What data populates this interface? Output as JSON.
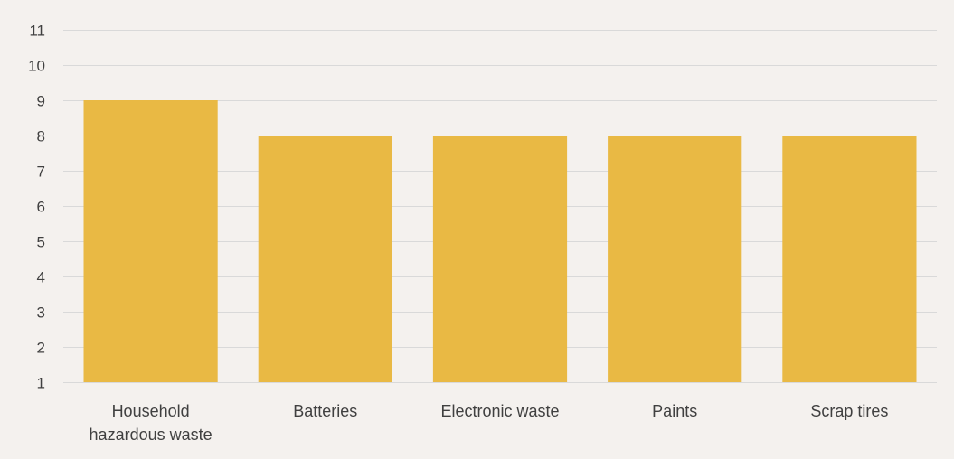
{
  "chart_data": {
    "type": "bar",
    "title": "",
    "xlabel": "",
    "ylabel": "",
    "categories": [
      "Household hazardous waste",
      "Batteries",
      "Electronic waste",
      "Paints",
      "Scrap tires"
    ],
    "category_label_lines": [
      [
        "Household",
        "hazardous waste"
      ],
      [
        "Batteries"
      ],
      [
        "Electronic waste"
      ],
      [
        "Paints"
      ],
      [
        "Scrap tires"
      ]
    ],
    "values": [
      9,
      8,
      8,
      8,
      8
    ],
    "ylim": [
      1,
      11
    ],
    "yticks": [
      1,
      2,
      3,
      4,
      5,
      6,
      7,
      8,
      9,
      10,
      11
    ],
    "grid": true,
    "legend": "none",
    "bar_color": "#e9b944"
  }
}
